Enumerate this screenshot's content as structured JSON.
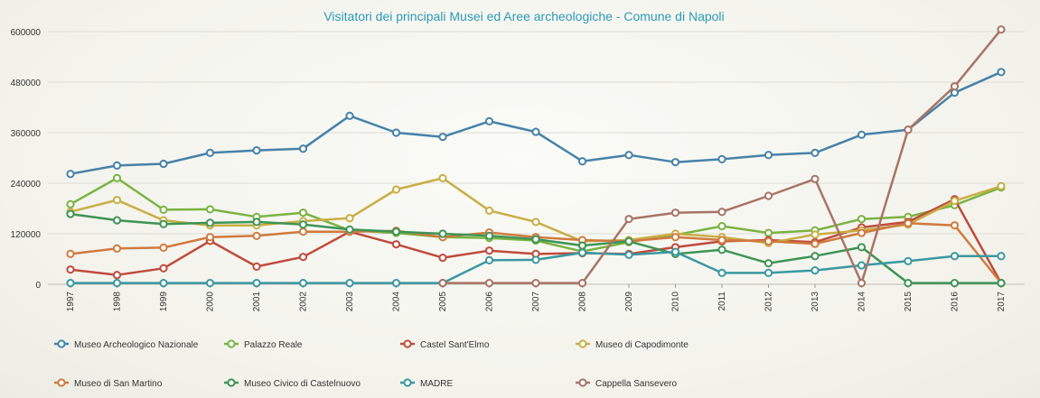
{
  "chart_data": {
    "type": "line",
    "title": "Visitatori dei principali Musei ed Aree archeologiche - Comune di Napoli",
    "x": [
      "1997",
      "1998",
      "1999",
      "2000",
      "2001",
      "2002",
      "2003",
      "2004",
      "2005",
      "2006",
      "2007",
      "2008",
      "2009",
      "2010",
      "2011",
      "2012",
      "2013",
      "2014",
      "2015",
      "2016",
      "2017"
    ],
    "ylim": [
      0,
      600000
    ],
    "yticks": [
      0,
      120000,
      240000,
      360000,
      480000,
      600000
    ],
    "ytick_labels": [
      "0",
      "120000",
      "240000",
      "360000",
      "480000",
      "600000"
    ],
    "grid": true,
    "legend_position": "bottom",
    "series": [
      {
        "name": "Museo Archeologico Nazionale",
        "color": "#4682a8",
        "values": [
          262000,
          282000,
          286000,
          312000,
          318000,
          322000,
          400000,
          360000,
          350000,
          387000,
          362000,
          292000,
          307000,
          290000,
          297000,
          307000,
          312000,
          355000,
          367000,
          455000,
          504000
        ]
      },
      {
        "name": "Palazzo Reale",
        "color": "#7ab342",
        "values": [
          190000,
          252000,
          177000,
          178000,
          160000,
          170000,
          128000,
          122000,
          112000,
          110000,
          104000,
          78000,
          100000,
          117000,
          138000,
          122000,
          128000,
          155000,
          160000,
          188000,
          230000
        ]
      },
      {
        "name": "Castel Sant'Elmo",
        "color": "#bf4b3c",
        "values": [
          35000,
          22000,
          38000,
          103000,
          42000,
          65000,
          125000,
          95000,
          63000,
          80000,
          72000,
          74000,
          72000,
          88000,
          102000,
          105000,
          100000,
          135000,
          148000,
          202000,
          3000
        ]
      },
      {
        "name": "Museo di Capodimonte",
        "color": "#c8ae45",
        "values": [
          172000,
          200000,
          152000,
          140000,
          140000,
          150000,
          157000,
          225000,
          252000,
          175000,
          148000,
          102000,
          105000,
          120000,
          112000,
          98000,
          118000,
          128000,
          142000,
          198000,
          233000
        ]
      },
      {
        "name": "Museo di San Martino",
        "color": "#d07a3e",
        "values": [
          72000,
          85000,
          87000,
          112000,
          115000,
          125000,
          125000,
          127000,
          112000,
          123000,
          112000,
          105000,
          102000,
          112000,
          105000,
          102000,
          96000,
          122000,
          145000,
          140000,
          3000
        ]
      },
      {
        "name": "Museo Civico di Castelnuovo",
        "color": "#3e9455",
        "values": [
          167000,
          152000,
          143000,
          146000,
          148000,
          142000,
          130000,
          125000,
          120000,
          115000,
          107000,
          92000,
          102000,
          72000,
          82000,
          50000,
          67000,
          88000,
          3000,
          3000,
          3000
        ]
      },
      {
        "name": "MADRE",
        "color": "#3b98a0",
        "values": [
          3000,
          3000,
          3000,
          3000,
          3000,
          3000,
          3000,
          3000,
          3000,
          57000,
          58000,
          75000,
          70000,
          77000,
          27000,
          27000,
          33000,
          45000,
          55000,
          67000,
          67000
        ]
      },
      {
        "name": "Cappella Sansevero",
        "color": "#a87466",
        "values": [
          null,
          null,
          null,
          null,
          null,
          null,
          null,
          null,
          3000,
          3000,
          3000,
          3000,
          155000,
          170000,
          172000,
          210000,
          250000,
          3000,
          367000,
          470000,
          605000
        ]
      }
    ]
  }
}
